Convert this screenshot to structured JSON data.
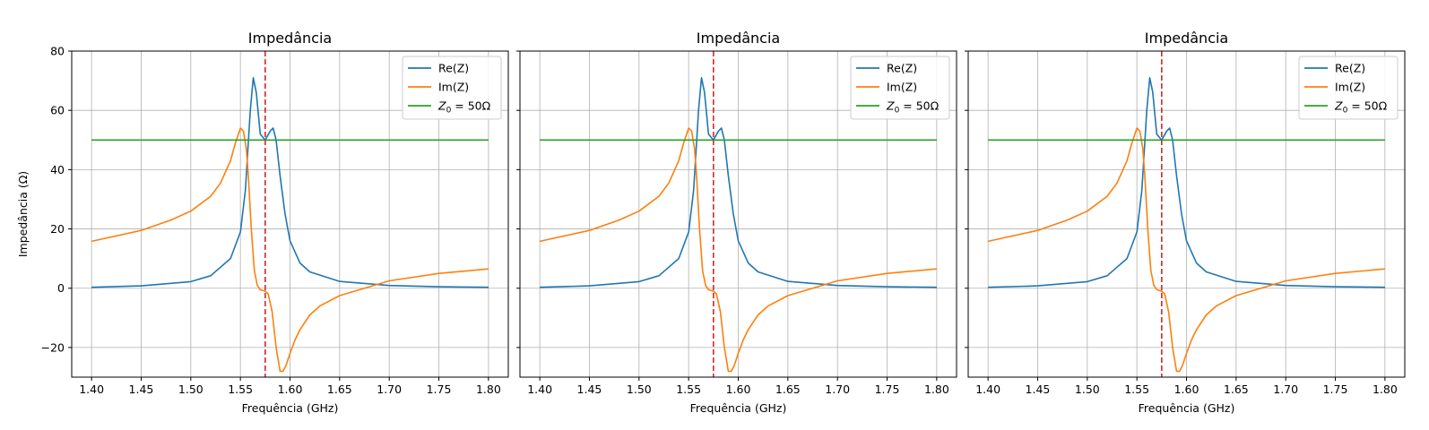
{
  "chart_data": [
    {
      "type": "line",
      "title": "Impedância",
      "xlabel": "Frequência (GHz)",
      "ylabel": "Impedância (Ω)",
      "xlim": [
        1.38,
        1.82
      ],
      "ylim": [
        -30,
        80
      ],
      "xticks": [
        1.4,
        1.45,
        1.5,
        1.55,
        1.6,
        1.65,
        1.7,
        1.75,
        1.8
      ],
      "xtick_labels": [
        "1.40",
        "1.45",
        "1.50",
        "1.55",
        "1.60",
        "1.65",
        "1.70",
        "1.75",
        "1.80"
      ],
      "yticks": [
        -20,
        0,
        20,
        40,
        60,
        80
      ],
      "ytick_labels": [
        "−20",
        "0",
        "20",
        "40",
        "60",
        "80"
      ],
      "grid": true,
      "legend": "top-right",
      "vline": {
        "x": 1.575,
        "color": "#d62728",
        "style": "dashed"
      },
      "series": [
        {
          "name": "Re(Z)",
          "color": "#1f77b4",
          "x": [
            1.4,
            1.45,
            1.5,
            1.52,
            1.54,
            1.55,
            1.555,
            1.56,
            1.563,
            1.566,
            1.57,
            1.575,
            1.58,
            1.583,
            1.586,
            1.59,
            1.595,
            1.6,
            1.61,
            1.62,
            1.65,
            1.7,
            1.75,
            1.8
          ],
          "y": [
            0.3,
            0.8,
            2.2,
            4.2,
            10,
            19,
            33,
            60,
            71,
            66,
            52,
            50,
            53,
            54,
            50,
            38,
            25,
            16,
            8.5,
            5.5,
            2.3,
            0.9,
            0.5,
            0.3
          ]
        },
        {
          "name": "Im(Z)",
          "color": "#ff7f0e",
          "x": [
            1.4,
            1.45,
            1.48,
            1.5,
            1.52,
            1.53,
            1.54,
            1.545,
            1.55,
            1.553,
            1.556,
            1.558,
            1.561,
            1.564,
            1.567,
            1.57,
            1.575,
            1.578,
            1.582,
            1.586,
            1.59,
            1.593,
            1.596,
            1.6,
            1.605,
            1.61,
            1.62,
            1.63,
            1.65,
            1.68,
            1.7,
            1.75,
            1.8
          ],
          "y": [
            15.8,
            19.5,
            23,
            26,
            31,
            35.5,
            43,
            49,
            54,
            53,
            47,
            38,
            20,
            6,
            1,
            -0.5,
            -1,
            -2,
            -8,
            -20,
            -28,
            -28,
            -26,
            -22,
            -17.5,
            -14,
            -9,
            -6,
            -2.5,
            0.5,
            2.5,
            5,
            6.5
          ]
        },
        {
          "name": "Z_0 = 50Ω",
          "color": "#2ca02c",
          "x": [
            1.4,
            1.8
          ],
          "y": [
            50,
            50
          ]
        }
      ]
    },
    {
      "type": "line",
      "title": "Impedância",
      "xlabel": "Frequência (GHz)",
      "ylabel": "",
      "xlim": [
        1.38,
        1.82
      ],
      "ylim": [
        -30,
        80
      ],
      "xticks": [
        1.4,
        1.45,
        1.5,
        1.55,
        1.6,
        1.65,
        1.7,
        1.75,
        1.8
      ],
      "xtick_labels": [
        "1.40",
        "1.45",
        "1.50",
        "1.55",
        "1.60",
        "1.65",
        "1.70",
        "1.75",
        "1.80"
      ],
      "yticks": [
        -20,
        0,
        20,
        40,
        60,
        80
      ],
      "ytick_labels": [],
      "grid": true,
      "legend": "top-right",
      "vline": {
        "x": 1.575,
        "color": "#d62728",
        "style": "dashed"
      },
      "series": [
        {
          "name": "Re(Z)",
          "color": "#1f77b4",
          "x": [
            1.4,
            1.45,
            1.5,
            1.52,
            1.54,
            1.55,
            1.555,
            1.56,
            1.563,
            1.566,
            1.57,
            1.575,
            1.58,
            1.583,
            1.586,
            1.59,
            1.595,
            1.6,
            1.61,
            1.62,
            1.65,
            1.7,
            1.75,
            1.8
          ],
          "y": [
            0.3,
            0.8,
            2.2,
            4.2,
            10,
            19,
            33,
            60,
            71,
            66,
            52,
            50,
            53,
            54,
            50,
            38,
            25,
            16,
            8.5,
            5.5,
            2.3,
            0.9,
            0.5,
            0.3
          ]
        },
        {
          "name": "Im(Z)",
          "color": "#ff7f0e",
          "x": [
            1.4,
            1.45,
            1.48,
            1.5,
            1.52,
            1.53,
            1.54,
            1.545,
            1.55,
            1.553,
            1.556,
            1.558,
            1.561,
            1.564,
            1.567,
            1.57,
            1.575,
            1.578,
            1.582,
            1.586,
            1.59,
            1.593,
            1.596,
            1.6,
            1.605,
            1.61,
            1.62,
            1.63,
            1.65,
            1.68,
            1.7,
            1.75,
            1.8
          ],
          "y": [
            15.8,
            19.5,
            23,
            26,
            31,
            35.5,
            43,
            49,
            54,
            53,
            47,
            38,
            20,
            6,
            1,
            -0.5,
            -1,
            -2,
            -8,
            -20,
            -28,
            -28,
            -26,
            -22,
            -17.5,
            -14,
            -9,
            -6,
            -2.5,
            0.5,
            2.5,
            5,
            6.5
          ]
        },
        {
          "name": "Z_0 = 50Ω",
          "color": "#2ca02c",
          "x": [
            1.4,
            1.8
          ],
          "y": [
            50,
            50
          ]
        }
      ]
    },
    {
      "type": "line",
      "title": "Impedância",
      "xlabel": "Frequência (GHz)",
      "ylabel": "",
      "xlim": [
        1.38,
        1.82
      ],
      "ylim": [
        -30,
        80
      ],
      "xticks": [
        1.4,
        1.45,
        1.5,
        1.55,
        1.6,
        1.65,
        1.7,
        1.75,
        1.8
      ],
      "xtick_labels": [
        "1.40",
        "1.45",
        "1.50",
        "1.55",
        "1.60",
        "1.65",
        "1.70",
        "1.75",
        "1.80"
      ],
      "yticks": [
        -20,
        0,
        20,
        40,
        60,
        80
      ],
      "ytick_labels": [],
      "grid": true,
      "legend": "top-right",
      "vline": {
        "x": 1.575,
        "color": "#d62728",
        "style": "dashed"
      },
      "series": [
        {
          "name": "Re(Z)",
          "color": "#1f77b4",
          "x": [
            1.4,
            1.45,
            1.5,
            1.52,
            1.54,
            1.55,
            1.555,
            1.56,
            1.563,
            1.566,
            1.57,
            1.575,
            1.58,
            1.583,
            1.586,
            1.59,
            1.595,
            1.6,
            1.61,
            1.62,
            1.65,
            1.7,
            1.75,
            1.8
          ],
          "y": [
            0.3,
            0.8,
            2.2,
            4.2,
            10,
            19,
            33,
            60,
            71,
            66,
            52,
            50,
            53,
            54,
            50,
            38,
            25,
            16,
            8.5,
            5.5,
            2.3,
            0.9,
            0.5,
            0.3
          ]
        },
        {
          "name": "Im(Z)",
          "color": "#ff7f0e",
          "x": [
            1.4,
            1.45,
            1.48,
            1.5,
            1.52,
            1.53,
            1.54,
            1.545,
            1.55,
            1.553,
            1.556,
            1.558,
            1.561,
            1.564,
            1.567,
            1.57,
            1.575,
            1.578,
            1.582,
            1.586,
            1.59,
            1.593,
            1.596,
            1.6,
            1.605,
            1.61,
            1.62,
            1.63,
            1.65,
            1.68,
            1.7,
            1.75,
            1.8
          ],
          "y": [
            15.8,
            19.5,
            23,
            26,
            31,
            35.5,
            43,
            49,
            54,
            53,
            47,
            38,
            20,
            6,
            1,
            -0.5,
            -1,
            -2,
            -8,
            -20,
            -28,
            -28,
            -26,
            -22,
            -17.5,
            -14,
            -9,
            -6,
            -2.5,
            0.5,
            2.5,
            5,
            6.5
          ]
        },
        {
          "name": "Z_0 = 50Ω",
          "color": "#2ca02c",
          "x": [
            1.4,
            1.8
          ],
          "y": [
            50,
            50
          ]
        }
      ]
    }
  ]
}
